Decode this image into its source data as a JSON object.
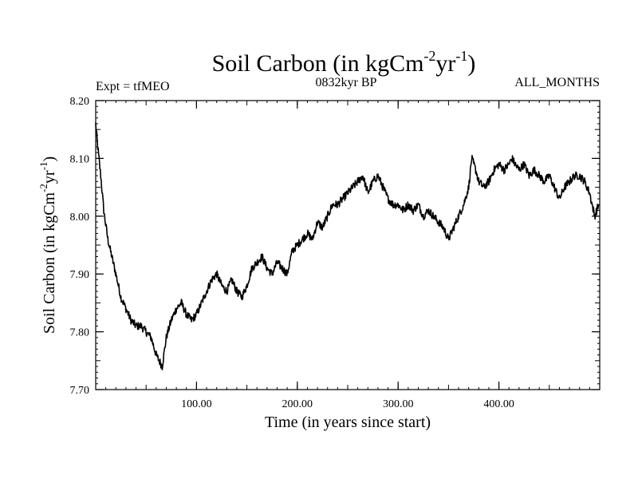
{
  "chart_data": {
    "type": "line",
    "title": {
      "base": "Soil Carbon (in kgCm",
      "sup1": "-2",
      "mid": "yr",
      "sup2": "-1",
      "end": ")"
    },
    "header": {
      "left": "Expt = tfMEO",
      "center": "0832kyr BP",
      "right": "ALL_MONTHS"
    },
    "xlabel": "Time (in years since start)",
    "ylabel": {
      "base": "Soil Carbon (in kgCm",
      "sup1": "-2",
      "mid": "yr",
      "sup2": "-1",
      "end": ")"
    },
    "xlim": [
      0,
      500
    ],
    "ylim": [
      7.7,
      8.2
    ],
    "xticks": [
      {
        "value": 100,
        "label": "100.00"
      },
      {
        "value": 200,
        "label": "200.00"
      },
      {
        "value": 300,
        "label": "300.00"
      },
      {
        "value": 400,
        "label": "400.00"
      }
    ],
    "yticks": [
      {
        "value": 7.7,
        "label": "7.70"
      },
      {
        "value": 7.8,
        "label": "7.80"
      },
      {
        "value": 7.9,
        "label": "7.90"
      },
      {
        "value": 8.0,
        "label": "8.00"
      },
      {
        "value": 8.1,
        "label": "8.10"
      },
      {
        "value": 8.2,
        "label": "8.20"
      }
    ],
    "series": [
      {
        "name": "Soil Carbon",
        "x": [
          0,
          2,
          5,
          8,
          12,
          16,
          20,
          25,
          30,
          35,
          40,
          45,
          50,
          55,
          60,
          63,
          66,
          70,
          75,
          80,
          85,
          90,
          95,
          100,
          105,
          110,
          115,
          120,
          125,
          130,
          135,
          140,
          145,
          150,
          155,
          160,
          165,
          170,
          175,
          180,
          185,
          190,
          195,
          200,
          205,
          210,
          215,
          220,
          225,
          230,
          235,
          240,
          245,
          250,
          255,
          260,
          265,
          270,
          275,
          280,
          285,
          290,
          295,
          300,
          305,
          310,
          315,
          320,
          325,
          330,
          335,
          340,
          345,
          350,
          355,
          360,
          365,
          370,
          373,
          377,
          380,
          385,
          390,
          395,
          400,
          405,
          410,
          413,
          416,
          420,
          425,
          430,
          435,
          440,
          445,
          450,
          455,
          460,
          465,
          470,
          475,
          480,
          485,
          490,
          495,
          499
        ],
        "values": [
          8.16,
          8.12,
          8.07,
          8.01,
          7.96,
          7.93,
          7.9,
          7.86,
          7.84,
          7.82,
          7.81,
          7.81,
          7.8,
          7.79,
          7.76,
          7.75,
          7.74,
          7.79,
          7.82,
          7.84,
          7.85,
          7.83,
          7.82,
          7.83,
          7.85,
          7.87,
          7.89,
          7.9,
          7.88,
          7.87,
          7.89,
          7.87,
          7.86,
          7.88,
          7.91,
          7.92,
          7.93,
          7.91,
          7.9,
          7.92,
          7.91,
          7.9,
          7.94,
          7.95,
          7.96,
          7.97,
          7.96,
          7.99,
          7.98,
          8.0,
          8.02,
          8.02,
          8.03,
          8.04,
          8.05,
          8.06,
          8.07,
          8.04,
          8.06,
          8.07,
          8.05,
          8.03,
          8.02,
          8.02,
          8.01,
          8.02,
          8.01,
          8.02,
          8.0,
          8.01,
          8.0,
          7.99,
          7.98,
          7.96,
          7.98,
          8.0,
          8.02,
          8.05,
          8.1,
          8.08,
          8.06,
          8.05,
          8.06,
          8.08,
          8.09,
          8.08,
          8.09,
          8.1,
          8.09,
          8.08,
          8.09,
          8.07,
          8.08,
          8.07,
          8.06,
          8.07,
          8.05,
          8.03,
          8.05,
          8.06,
          8.07,
          8.07,
          8.06,
          8.04,
          8.0,
          8.02
        ]
      }
    ],
    "grid": false
  }
}
